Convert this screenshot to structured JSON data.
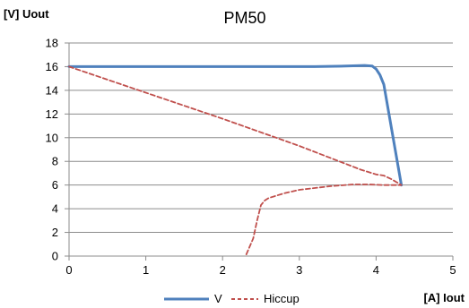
{
  "chart_data": {
    "type": "line",
    "title": "PM50",
    "xlabel": "[A] Iout",
    "ylabel": "[V] Uout",
    "xlim": [
      0,
      5
    ],
    "ylim": [
      0,
      18
    ],
    "xticks": [
      0,
      1,
      2,
      3,
      4,
      5
    ],
    "yticks": [
      0,
      2,
      4,
      6,
      8,
      10,
      12,
      14,
      16,
      18
    ],
    "grid": {
      "horizontal": true,
      "vertical": false
    },
    "legend_position": "bottom",
    "series": [
      {
        "name": "V",
        "color": "#4f81bd",
        "style": "solid",
        "x": [
          0,
          3.2,
          3.6,
          3.85,
          3.95,
          4.0,
          4.05,
          4.1,
          4.33
        ],
        "y": [
          16.0,
          16.0,
          16.05,
          16.1,
          16.05,
          15.8,
          15.3,
          14.5,
          6.0
        ]
      },
      {
        "name": "Hiccup",
        "color": "#c0504d",
        "style": "dashed",
        "x": [
          0,
          2.0,
          3.0,
          3.8,
          4.0,
          4.1,
          4.2,
          4.33,
          4.1,
          3.9,
          3.7,
          3.4,
          3.0,
          2.8,
          2.6,
          2.55,
          2.5,
          2.45,
          2.4,
          2.3
        ],
        "y": [
          16.0,
          11.6,
          9.3,
          7.3,
          6.9,
          6.8,
          6.5,
          6.0,
          6.0,
          6.05,
          6.05,
          5.9,
          5.6,
          5.3,
          4.9,
          4.7,
          4.3,
          3.0,
          1.5,
          0.0
        ]
      }
    ]
  }
}
